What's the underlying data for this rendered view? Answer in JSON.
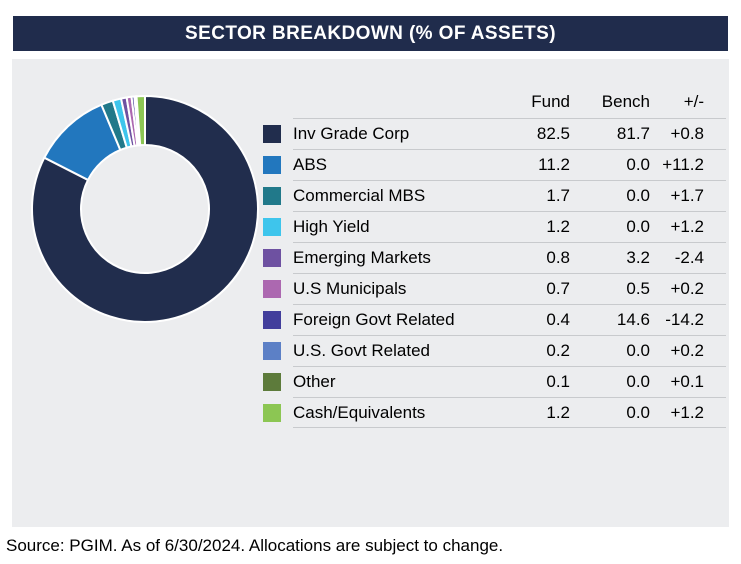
{
  "header": {
    "title": "SECTOR BREAKDOWN (% OF ASSETS)"
  },
  "table": {
    "columns": {
      "fund": "Fund",
      "bench": "Bench",
      "diff": "+/-"
    },
    "rows": [
      {
        "label": "Inv Grade Corp",
        "fund": "82.5",
        "bench": "81.7",
        "diff": "+0.8"
      },
      {
        "label": "ABS",
        "fund": "11.2",
        "bench": "0.0",
        "diff": "+11.2"
      },
      {
        "label": "Commercial MBS",
        "fund": "1.7",
        "bench": "0.0",
        "diff": "+1.7"
      },
      {
        "label": "High Yield",
        "fund": "1.2",
        "bench": "0.0",
        "diff": "+1.2"
      },
      {
        "label": "Emerging Markets",
        "fund": "0.8",
        "bench": "3.2",
        "diff": "-2.4"
      },
      {
        "label": "U.S Municipals",
        "fund": "0.7",
        "bench": "0.5",
        "diff": "+0.2"
      },
      {
        "label": "Foreign Govt Related",
        "fund": "0.4",
        "bench": "14.6",
        "diff": "-14.2"
      },
      {
        "label": "U.S. Govt Related",
        "fund": "0.2",
        "bench": "0.0",
        "diff": "+0.2"
      },
      {
        "label": "Other",
        "fund": "0.1",
        "bench": "0.0",
        "diff": "+0.1"
      },
      {
        "label": "Cash/Equivalents",
        "fund": "1.2",
        "bench": "0.0",
        "diff": "+1.2"
      }
    ]
  },
  "footer": {
    "source": "Source: PGIM. As of 6/30/2024. Allocations are subject to change."
  },
  "colors": {
    "header_bar": "#202C4C",
    "panel_background": "#ECEDEF",
    "row_divider": "#C8CACD",
    "slice_gap": "#FFFFFF"
  },
  "chart_data": {
    "type": "pie",
    "subtype": "donut",
    "title": "SECTOR BREAKDOWN (% OF ASSETS)",
    "categories": [
      "Inv Grade Corp",
      "ABS",
      "Commercial MBS",
      "High Yield",
      "Emerging Markets",
      "U.S Municipals",
      "Foreign Govt Related",
      "U.S. Govt Related",
      "Other",
      "Cash/Equivalents"
    ],
    "series": [
      {
        "name": "Fund",
        "values": [
          82.5,
          11.2,
          1.7,
          1.2,
          0.8,
          0.7,
          0.4,
          0.2,
          0.1,
          1.2
        ]
      },
      {
        "name": "Bench",
        "values": [
          81.7,
          0.0,
          0.0,
          0.0,
          3.2,
          0.5,
          14.6,
          0.0,
          0.0,
          0.0
        ]
      },
      {
        "name": "+/-",
        "values": [
          0.8,
          11.2,
          1.7,
          1.2,
          -2.4,
          0.2,
          -14.2,
          0.2,
          0.1,
          1.2
        ]
      }
    ],
    "donut_series": "Fund",
    "colors": [
      "#212D4D",
      "#2277BE",
      "#21798A",
      "#3EC5EC",
      "#6E51A1",
      "#AC68B0",
      "#423E9C",
      "#5C80C6",
      "#5D7B3B",
      "#8CC653"
    ],
    "start_angle_deg": 0,
    "direction": "clockwise",
    "inner_radius_ratio": 0.57,
    "legend_position": "right-table"
  }
}
